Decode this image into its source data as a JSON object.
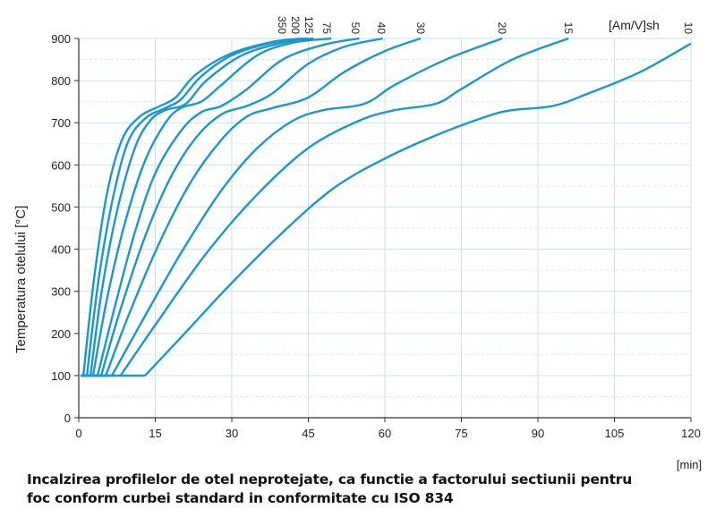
{
  "chart_data": {
    "type": "line",
    "title": "",
    "xlabel": "[min]",
    "ylabel": "Temperatura otelului   [°C]",
    "series_label": "[Am/V]sh",
    "xlim": [
      0,
      120
    ],
    "ylim": [
      0,
      900
    ],
    "xticks": [
      "0",
      "15",
      "30",
      "45",
      "60",
      "75",
      "90",
      "105",
      "120"
    ],
    "yticks": [
      "0",
      "100",
      "200",
      "300",
      "400",
      "500",
      "600",
      "700",
      "800",
      "900"
    ],
    "grid": true,
    "color": "#1b97cc",
    "series": [
      {
        "name": "350",
        "points": [
          [
            0.9,
            100
          ],
          [
            3,
            330
          ],
          [
            5.5,
            530
          ],
          [
            8.5,
            660
          ],
          [
            12,
            715
          ],
          [
            16,
            740
          ],
          [
            19,
            760
          ],
          [
            23,
            815
          ],
          [
            30,
            865
          ],
          [
            38,
            892
          ],
          [
            44,
            900
          ]
        ]
      },
      {
        "name": "200",
        "points": [
          [
            1.6,
            100
          ],
          [
            3.8,
            320
          ],
          [
            6.5,
            510
          ],
          [
            9.5,
            650
          ],
          [
            13,
            710
          ],
          [
            17,
            735
          ],
          [
            20,
            755
          ],
          [
            24,
            810
          ],
          [
            30,
            860
          ],
          [
            38,
            890
          ],
          [
            45,
            900
          ]
        ]
      },
      {
        "name": "125",
        "points": [
          [
            2.3,
            100
          ],
          [
            4.5,
            300
          ],
          [
            7.5,
            490
          ],
          [
            11,
            640
          ],
          [
            14,
            705
          ],
          [
            17,
            730
          ],
          [
            21,
            745
          ],
          [
            25,
            800
          ],
          [
            32,
            860
          ],
          [
            40,
            890
          ],
          [
            46,
            900
          ]
        ]
      },
      {
        "name": "75",
        "points": [
          [
            2.8,
            100
          ],
          [
            5.5,
            280
          ],
          [
            9,
            460
          ],
          [
            13,
            610
          ],
          [
            17,
            700
          ],
          [
            20,
            735
          ],
          [
            24,
            750
          ],
          [
            28,
            790
          ],
          [
            35,
            860
          ],
          [
            42,
            890
          ],
          [
            49.5,
            900
          ]
        ]
      },
      {
        "name": "50",
        "points": [
          [
            3.7,
            100
          ],
          [
            7,
            260
          ],
          [
            11,
            440
          ],
          [
            15,
            580
          ],
          [
            20,
            680
          ],
          [
            24,
            725
          ],
          [
            28,
            740
          ],
          [
            33,
            780
          ],
          [
            40,
            850
          ],
          [
            48,
            885
          ],
          [
            55,
            900
          ]
        ]
      },
      {
        "name": "40",
        "points": [
          [
            4.4,
            100
          ],
          [
            8,
            250
          ],
          [
            13,
            430
          ],
          [
            18,
            570
          ],
          [
            23,
            665
          ],
          [
            28,
            720
          ],
          [
            33,
            740
          ],
          [
            38,
            770
          ],
          [
            45,
            840
          ],
          [
            52,
            880
          ],
          [
            59.6,
            900
          ]
        ]
      },
      {
        "name": "30",
        "points": [
          [
            5.3,
            100
          ],
          [
            10,
            250
          ],
          [
            16,
            420
          ],
          [
            22,
            560
          ],
          [
            28,
            660
          ],
          [
            33,
            715
          ],
          [
            38,
            735
          ],
          [
            45,
            760
          ],
          [
            52,
            820
          ],
          [
            60,
            870
          ],
          [
            67,
            900
          ]
        ]
      },
      {
        "name": "20",
        "points": [
          [
            6.5,
            100
          ],
          [
            12,
            220
          ],
          [
            20,
            390
          ],
          [
            28,
            540
          ],
          [
            35,
            640
          ],
          [
            42,
            705
          ],
          [
            48,
            730
          ],
          [
            56,
            745
          ],
          [
            62,
            790
          ],
          [
            72,
            850
          ],
          [
            83,
            900
          ]
        ]
      },
      {
        "name": "15",
        "points": [
          [
            8.2,
            100
          ],
          [
            15,
            220
          ],
          [
            25,
            390
          ],
          [
            35,
            530
          ],
          [
            45,
            640
          ],
          [
            55,
            705
          ],
          [
            62,
            730
          ],
          [
            70,
            745
          ],
          [
            75,
            780
          ],
          [
            85,
            850
          ],
          [
            96,
            900
          ]
        ]
      },
      {
        "name": "10",
        "points": [
          [
            13,
            100
          ],
          [
            20,
            190
          ],
          [
            30,
            320
          ],
          [
            40,
            440
          ],
          [
            50,
            545
          ],
          [
            60,
            615
          ],
          [
            70,
            670
          ],
          [
            80,
            715
          ],
          [
            85,
            730
          ],
          [
            93,
            740
          ],
          [
            100,
            770
          ],
          [
            110,
            820
          ],
          [
            120,
            888
          ]
        ]
      }
    ]
  },
  "caption": {
    "line1": "Incalzirea profilelor de otel neprotejate, ca functie a factorului sectiunii pentru",
    "line2": "foc conform curbei standard in conformitate cu ISO 834"
  }
}
